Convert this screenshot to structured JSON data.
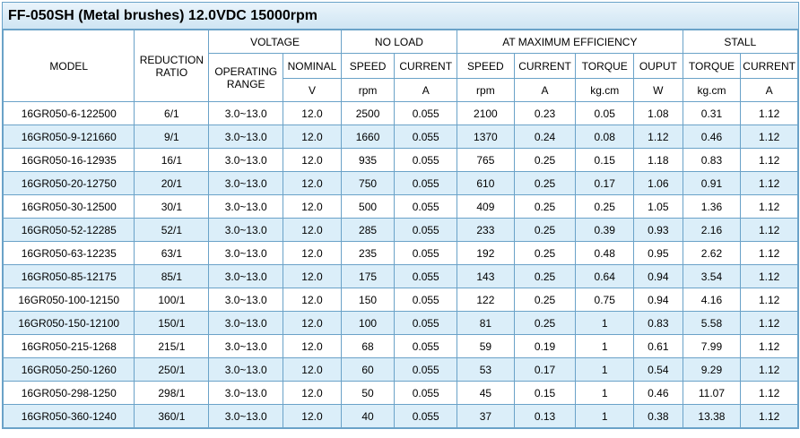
{
  "title": "FF-050SH (Metal brushes)  12.0VDC 15000rpm",
  "headers": {
    "model": "MODEL",
    "reduction_ratio": "REDUCTION RATIO",
    "voltage": "VOLTAGE",
    "no_load": "NO LOAD",
    "max_eff": "AT MAXIMUM EFFICIENCY",
    "stall": "STALL",
    "operating_range": "OPERATING RANGE",
    "nominal": "NOMINAL",
    "speed": "SPEED",
    "current": "CURRENT",
    "torque": "TORQUE",
    "ouput": "OUPUT",
    "unit_v": "V",
    "unit_rpm": "rpm",
    "unit_a": "A",
    "unit_kgcm": "kg.cm",
    "unit_w": "W"
  },
  "rows": [
    [
      "16GR050-6-122500",
      "6/1",
      "3.0~13.0",
      "12.0",
      "2500",
      "0.055",
      "2100",
      "0.23",
      "0.05",
      "1.08",
      "0.31",
      "1.12"
    ],
    [
      "16GR050-9-121660",
      "9/1",
      "3.0~13.0",
      "12.0",
      "1660",
      "0.055",
      "1370",
      "0.24",
      "0.08",
      "1.12",
      "0.46",
      "1.12"
    ],
    [
      "16GR050-16-12935",
      "16/1",
      "3.0~13.0",
      "12.0",
      "935",
      "0.055",
      "765",
      "0.25",
      "0.15",
      "1.18",
      "0.83",
      "1.12"
    ],
    [
      "16GR050-20-12750",
      "20/1",
      "3.0~13.0",
      "12.0",
      "750",
      "0.055",
      "610",
      "0.25",
      "0.17",
      "1.06",
      "0.91",
      "1.12"
    ],
    [
      "16GR050-30-12500",
      "30/1",
      "3.0~13.0",
      "12.0",
      "500",
      "0.055",
      "409",
      "0.25",
      "0.25",
      "1.05",
      "1.36",
      "1.12"
    ],
    [
      "16GR050-52-12285",
      "52/1",
      "3.0~13.0",
      "12.0",
      "285",
      "0.055",
      "233",
      "0.25",
      "0.39",
      "0.93",
      "2.16",
      "1.12"
    ],
    [
      "16GR050-63-12235",
      "63/1",
      "3.0~13.0",
      "12.0",
      "235",
      "0.055",
      "192",
      "0.25",
      "0.48",
      "0.95",
      "2.62",
      "1.12"
    ],
    [
      "16GR050-85-12175",
      "85/1",
      "3.0~13.0",
      "12.0",
      "175",
      "0.055",
      "143",
      "0.25",
      "0.64",
      "0.94",
      "3.54",
      "1.12"
    ],
    [
      "16GR050-100-12150",
      "100/1",
      "3.0~13.0",
      "12.0",
      "150",
      "0.055",
      "122",
      "0.25",
      "0.75",
      "0.94",
      "4.16",
      "1.12"
    ],
    [
      "16GR050-150-12100",
      "150/1",
      "3.0~13.0",
      "12.0",
      "100",
      "0.055",
      "81",
      "0.25",
      "1",
      "0.83",
      "5.58",
      "1.12"
    ],
    [
      "16GR050-215-1268",
      "215/1",
      "3.0~13.0",
      "12.0",
      "68",
      "0.055",
      "59",
      "0.19",
      "1",
      "0.61",
      "7.99",
      "1.12"
    ],
    [
      "16GR050-250-1260",
      "250/1",
      "3.0~13.0",
      "12.0",
      "60",
      "0.055",
      "53",
      "0.17",
      "1",
      "0.54",
      "9.29",
      "1.12"
    ],
    [
      "16GR050-298-1250",
      "298/1",
      "3.0~13.0",
      "12.0",
      "50",
      "0.055",
      "45",
      "0.15",
      "1",
      "0.46",
      "11.07",
      "1.12"
    ],
    [
      "16GR050-360-1240",
      "360/1",
      "3.0~13.0",
      "12.0",
      "40",
      "0.055",
      "37",
      "0.13",
      "1",
      "0.38",
      "13.38",
      "1.12"
    ]
  ]
}
